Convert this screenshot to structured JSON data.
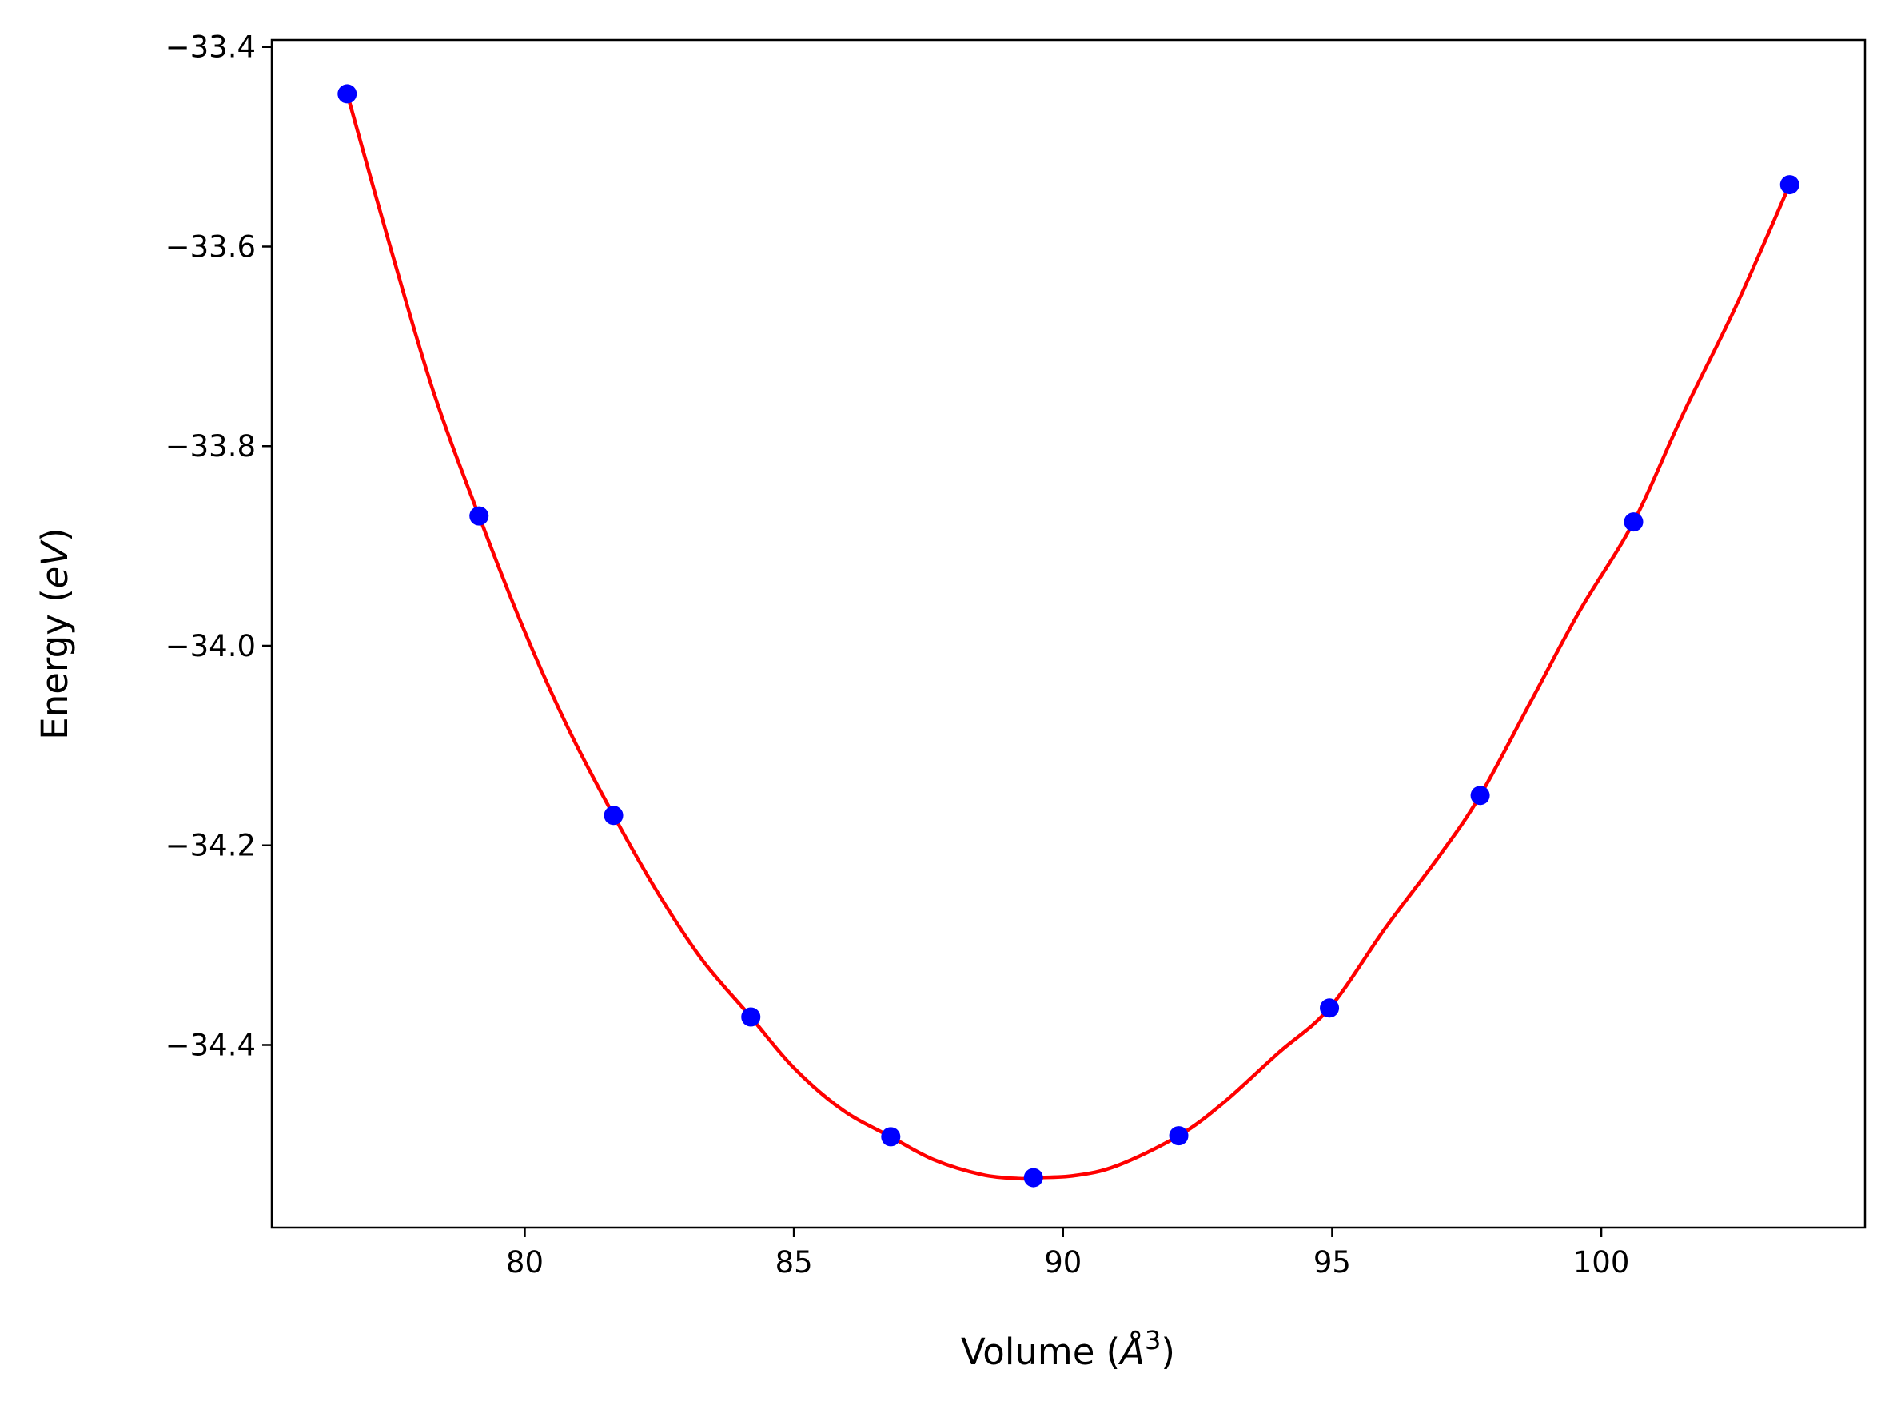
{
  "chart_data": {
    "type": "scatter",
    "title": "",
    "xlabel": {
      "prefix": "Volume (",
      "italic": "Å",
      "sup": "3",
      "suffix": ")"
    },
    "ylabel": {
      "prefix": "Energy (",
      "italic": "eV",
      "suffix": ")"
    },
    "xlim": [
      75.3,
      104.9
    ],
    "ylim": [
      -34.583,
      -33.393
    ],
    "x_ticks": [
      80,
      85,
      90,
      95,
      100
    ],
    "x_tick_labels": [
      "80",
      "85",
      "90",
      "95",
      "100"
    ],
    "y_ticks": [
      -33.4,
      -33.6,
      -33.8,
      -34.0,
      -34.2,
      -34.4
    ],
    "y_tick_labels": [
      "−33.4",
      "−33.6",
      "−33.8",
      "−34.0",
      "−34.2",
      "−34.4"
    ],
    "grid": false,
    "series": [
      {
        "kind": "points",
        "color": "#0000ff",
        "x": [
          76.7,
          79.15,
          81.65,
          84.2,
          86.8,
          89.45,
          92.15,
          94.95,
          97.75,
          100.6,
          103.5
        ],
        "y": [
          -33.447,
          -33.87,
          -34.17,
          -34.372,
          -34.492,
          -34.533,
          -34.491,
          -34.363,
          -34.15,
          -33.876,
          -33.538
        ]
      },
      {
        "kind": "fit-line",
        "color": "#ff0000",
        "x": [
          76.7,
          77.5,
          78.3,
          79.15,
          80.0,
          80.8,
          81.65,
          82.5,
          83.3,
          84.2,
          85.0,
          85.9,
          86.8,
          87.6,
          88.5,
          89.2,
          89.45,
          90.2,
          91.0,
          92.15,
          93.0,
          94.0,
          94.95,
          96.0,
          97.0,
          97.75,
          98.7,
          99.6,
          100.6,
          101.5,
          102.5,
          103.5
        ],
        "y": [
          -33.447,
          -33.6,
          -33.745,
          -33.87,
          -33.986,
          -34.082,
          -34.17,
          -34.25,
          -34.315,
          -34.372,
          -34.423,
          -34.465,
          -34.492,
          -34.515,
          -34.53,
          -34.534,
          -34.533,
          -34.531,
          -34.521,
          -34.491,
          -34.457,
          -34.408,
          -34.363,
          -34.282,
          -34.21,
          -34.15,
          -34.055,
          -33.965,
          -33.876,
          -33.77,
          -33.66,
          -33.538
        ]
      }
    ]
  }
}
